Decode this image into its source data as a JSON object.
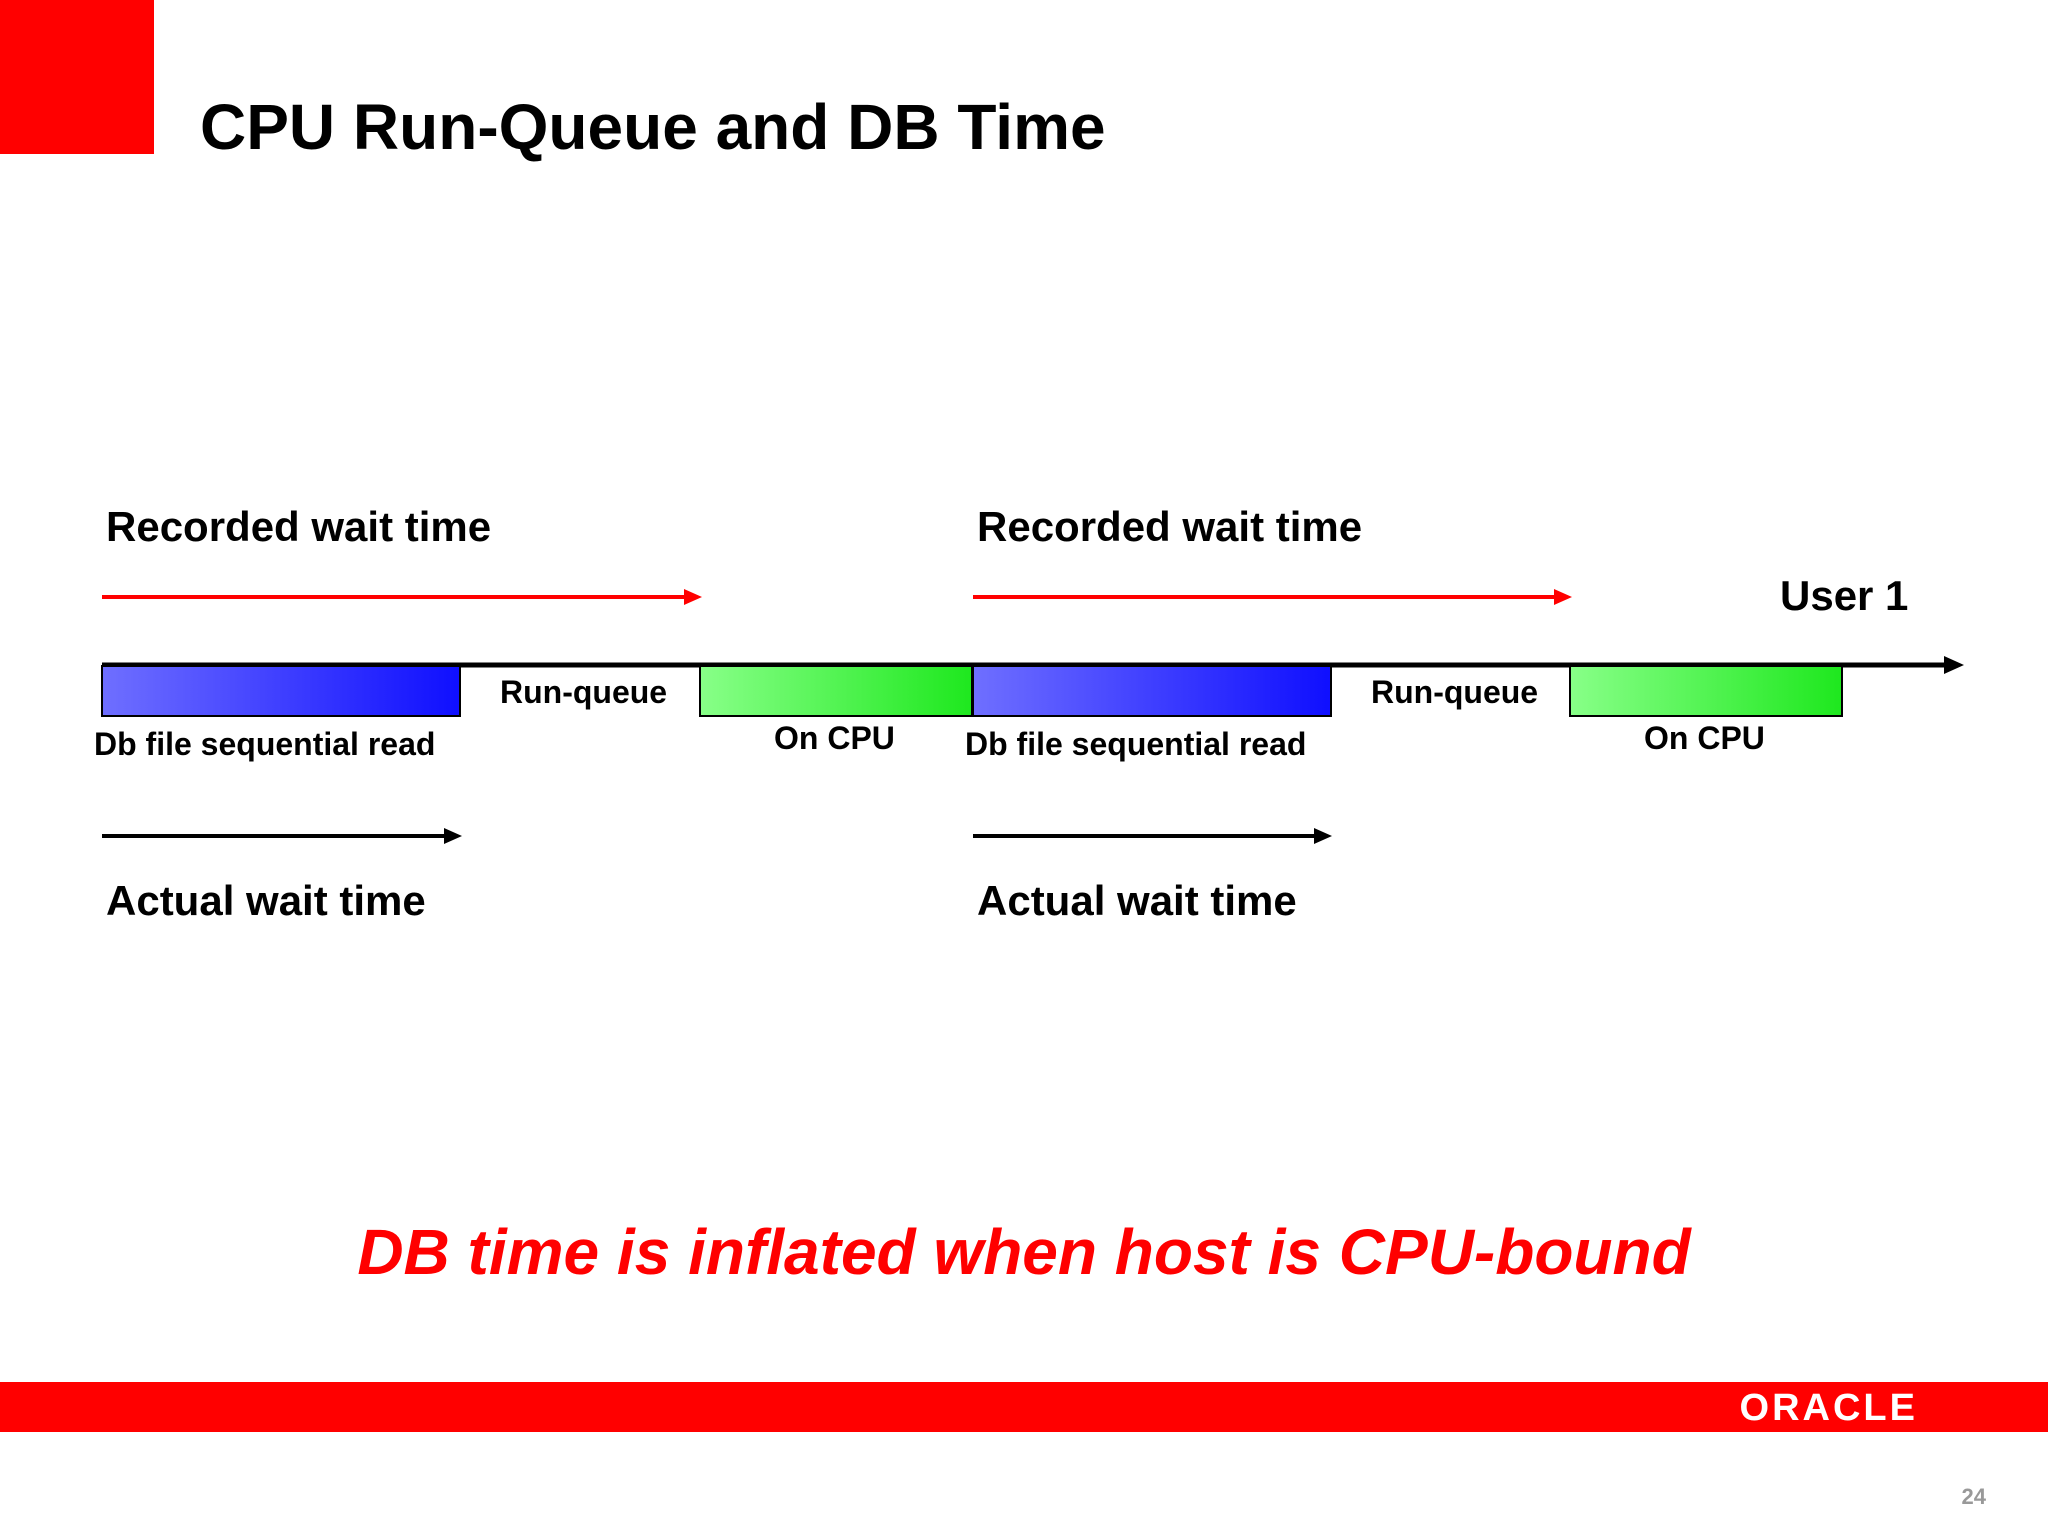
{
  "slide": {
    "title": "CPU Run-Queue and DB Time",
    "conclusion": "DB time is inflated when host is CPU-bound",
    "page_number": "24",
    "logo_text": "ORACLE"
  },
  "diagram": {
    "user_label": "User 1",
    "cycles": [
      {
        "recorded_label": "Recorded wait time",
        "actual_label": "Actual wait time",
        "io_label": "Db file sequential read",
        "runqueue_label": "Run-queue",
        "cpu_label": "On CPU"
      },
      {
        "recorded_label": "Recorded wait time",
        "actual_label": "Actual wait time",
        "io_label": "Db file sequential read",
        "runqueue_label": "Run-queue",
        "cpu_label": "On CPU"
      }
    ]
  },
  "colors": {
    "brand_red": "#ff0000",
    "io_gradient_start": "#6f6fff",
    "io_gradient_end": "#0f0fff",
    "cpu_gradient_start": "#88ff88",
    "cpu_gradient_end": "#1ee81e"
  }
}
